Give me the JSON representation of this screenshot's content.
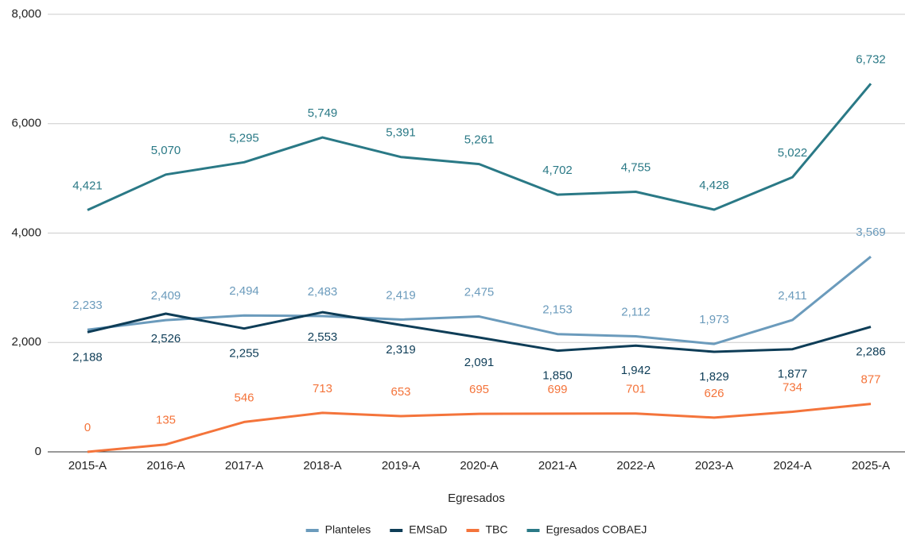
{
  "chart_data": {
    "type": "line",
    "x_label": "Egresados",
    "categories": [
      "2015-A",
      "2016-A",
      "2017-A",
      "2018-A",
      "2019-A",
      "2020-A",
      "2021-A",
      "2022-A",
      "2023-A",
      "2024-A",
      "2025-A"
    ],
    "series": [
      {
        "name": "Planteles",
        "color": "#6b9bbc",
        "values": [
          2233,
          2409,
          2494,
          2483,
          2419,
          2475,
          2153,
          2112,
          1973,
          2411,
          3569
        ],
        "value_labels": [
          "2,233",
          "2,409",
          "2,494",
          "2,483",
          "2,419",
          "2,475",
          "2,153",
          "2,112",
          "1,973",
          "2,411",
          "3,569"
        ]
      },
      {
        "name": "EMSaD",
        "color": "#0e3d57",
        "values": [
          2188,
          2526,
          2255,
          2553,
          2319,
          2091,
          1850,
          1942,
          1829,
          1877,
          2286
        ],
        "value_labels": [
          "2,188",
          "2,526",
          "2,255",
          "2,553",
          "2,319",
          "2,091",
          "1,850",
          "1,942",
          "1,829",
          "1,877",
          "2,286"
        ]
      },
      {
        "name": "TBC",
        "color": "#f4743b",
        "values": [
          0,
          135,
          546,
          713,
          653,
          695,
          699,
          701,
          626,
          734,
          877
        ]
      },
      {
        "name": "Egresados COBAEJ",
        "color": "#2a7986",
        "values": [
          4421,
          5070,
          5295,
          5749,
          5391,
          5261,
          4702,
          4755,
          4428,
          5022,
          6732
        ],
        "value_labels": [
          "4,421",
          "5,070",
          "5,295",
          "5,749",
          "5,391",
          "5,261",
          "4,702",
          "4,755",
          "4,428",
          "5,022",
          "6,732"
        ]
      }
    ],
    "ylim": [
      0,
      8000
    ],
    "yticks": [
      0,
      {
        "value": 2000,
        "label": "2,000"
      },
      {
        "value": 4000,
        "label": "4,000"
      },
      {
        "value": 6000,
        "label": "6,000"
      },
      {
        "value": 8000,
        "label": "8,000"
      }
    ],
    "grid": true,
    "legend": "bottom"
  }
}
